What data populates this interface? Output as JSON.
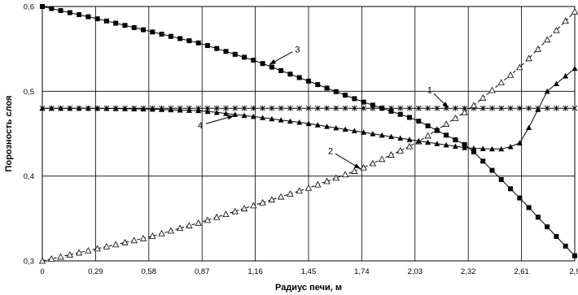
{
  "chart_data": {
    "type": "line",
    "xlabel": "Радиус печи, м",
    "ylabel": "Порозность слоя",
    "xlim": [
      0,
      2.9
    ],
    "ylim": [
      0.3,
      0.6
    ],
    "x_ticks": [
      "0",
      "0,29",
      "0,58",
      "0,87",
      "1,16",
      "1,45",
      "1,74",
      "2,03",
      "2,32",
      "2,61",
      "2,9"
    ],
    "y_ticks": [
      "0,3",
      "0,4",
      "0,5",
      "0,6"
    ],
    "grid": true,
    "legend": "none",
    "series": [
      {
        "marker": "asterisk",
        "line_style": "solid",
        "x": [
          0,
          2.9
        ],
        "y": [
          0.48,
          0.48
        ]
      },
      {
        "marker": "open-triangle",
        "line_style": "dashed",
        "x": [
          0,
          0.29,
          0.58,
          0.87,
          1.16,
          1.45,
          1.74,
          2.03,
          2.32,
          2.61,
          2.9
        ],
        "y": [
          0.3,
          0.314,
          0.328,
          0.346,
          0.366,
          0.386,
          0.409,
          0.438,
          0.478,
          0.53,
          0.594
        ]
      },
      {
        "marker": "filled-square",
        "line_style": "solid",
        "x": [
          0,
          0.29,
          0.58,
          0.87,
          1.16,
          1.45,
          1.74,
          2.03,
          2.32,
          2.61,
          2.9
        ],
        "y": [
          0.6,
          0.586,
          0.571,
          0.556,
          0.536,
          0.512,
          0.488,
          0.467,
          0.435,
          0.372,
          0.306
        ]
      },
      {
        "marker": "filled-triangle",
        "line_style": "solid",
        "x": [
          0,
          0.29,
          0.58,
          0.87,
          1.16,
          1.45,
          1.74,
          2.03,
          2.32,
          2.45,
          2.52,
          2.61,
          2.75,
          2.9
        ],
        "y": [
          0.48,
          0.48,
          0.479,
          0.477,
          0.47,
          0.462,
          0.452,
          0.442,
          0.433,
          0.432,
          0.432,
          0.44,
          0.5,
          0.527
        ]
      }
    ],
    "annotations": [
      {
        "text": "1",
        "x": 2.11,
        "y": 0.498,
        "target_x": 2.21,
        "target_y": 0.481
      },
      {
        "text": "2",
        "x": 1.57,
        "y": 0.426,
        "target_x": 1.73,
        "target_y": 0.409
      },
      {
        "text": "3",
        "x": 1.39,
        "y": 0.546,
        "target_x": 1.24,
        "target_y": 0.532
      },
      {
        "text": "4",
        "x": 0.86,
        "y": 0.456,
        "target_x": 1.04,
        "target_y": 0.471
      }
    ]
  }
}
